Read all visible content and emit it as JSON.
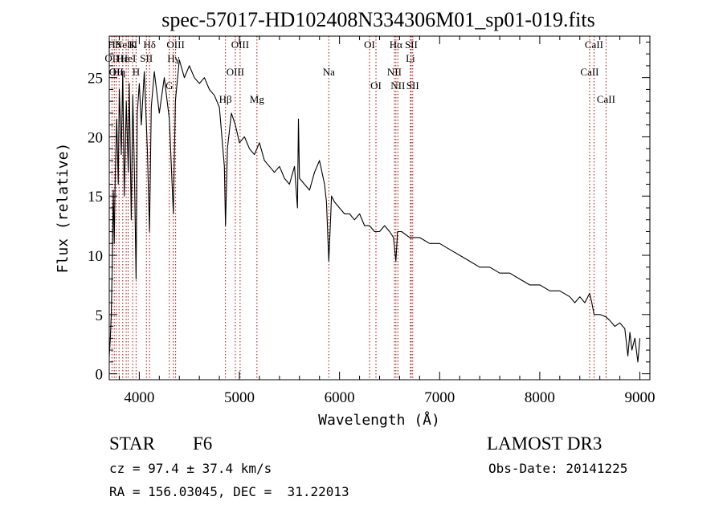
{
  "chart_data": {
    "type": "line",
    "title": "spec-57017-HD102408N334306M01_sp01-019.fits",
    "xlabel": "Wavelength (Å)",
    "ylabel": "Flux (relative)",
    "xlim": [
      3700,
      9100
    ],
    "ylim": [
      -0.5,
      28.5
    ],
    "xticks": [
      4000,
      5000,
      6000,
      7000,
      8000,
      9000
    ],
    "yticks": [
      0,
      5,
      10,
      15,
      20,
      25
    ],
    "series": [
      {
        "name": "flux",
        "x": [
          3700,
          3710,
          3720,
          3730,
          3740,
          3750,
          3760,
          3775,
          3790,
          3800,
          3820,
          3835,
          3850,
          3870,
          3890,
          3900,
          3920,
          3935,
          3950,
          3968,
          3980,
          4000,
          4020,
          4050,
          4080,
          4102,
          4120,
          4150,
          4200,
          4250,
          4300,
          4340,
          4360,
          4400,
          4450,
          4500,
          4550,
          4600,
          4650,
          4700,
          4750,
          4800,
          4850,
          4861,
          4880,
          4920,
          4960,
          5000,
          5050,
          5100,
          5150,
          5200,
          5250,
          5300,
          5350,
          5400,
          5450,
          5500,
          5550,
          5580,
          5590,
          5600,
          5650,
          5700,
          5750,
          5800,
          5850,
          5870,
          5893,
          5920,
          5950,
          6000,
          6050,
          6100,
          6150,
          6200,
          6250,
          6300,
          6350,
          6400,
          6450,
          6500,
          6540,
          6563,
          6580,
          6620,
          6700,
          6800,
          6900,
          7000,
          7100,
          7200,
          7300,
          7400,
          7500,
          7600,
          7700,
          7800,
          7900,
          8000,
          8100,
          8200,
          8300,
          8350,
          8400,
          8450,
          8498,
          8520,
          8542,
          8600,
          8662,
          8700,
          8750,
          8800,
          8850,
          8880,
          8900,
          8920,
          8950,
          8980,
          9000
        ],
        "y": [
          1.5,
          2.8,
          5.0,
          9.0,
          15.5,
          11.0,
          17.0,
          21.5,
          16.0,
          24.0,
          18.5,
          25.5,
          15.0,
          23.0,
          17.0,
          24.5,
          13.0,
          23.5,
          17.5,
          8.0,
          22.0,
          24.5,
          21.0,
          25.5,
          19.0,
          12.0,
          22.5,
          25.5,
          22.0,
          25.0,
          21.5,
          13.5,
          23.0,
          26.5,
          25.0,
          26.0,
          25.0,
          24.5,
          25.0,
          24.0,
          23.5,
          22.5,
          17.5,
          12.5,
          19.0,
          22.0,
          21.0,
          19.5,
          20.0,
          19.0,
          18.5,
          19.5,
          18.0,
          17.5,
          17.0,
          17.5,
          16.5,
          16.0,
          17.5,
          14.0,
          21.5,
          16.5,
          16.0,
          15.5,
          17.0,
          18.0,
          16.0,
          14.5,
          9.5,
          15.0,
          14.5,
          14.0,
          13.5,
          13.5,
          13.0,
          13.5,
          12.5,
          12.5,
          12.0,
          12.0,
          12.5,
          12.0,
          11.5,
          9.5,
          12.0,
          12.0,
          11.5,
          11.5,
          11.0,
          11.0,
          10.5,
          10.0,
          9.5,
          9.0,
          9.0,
          8.5,
          8.5,
          8.0,
          7.5,
          7.5,
          7.0,
          7.0,
          6.5,
          6.0,
          6.5,
          6.0,
          6.8,
          6.0,
          5.0,
          5.0,
          4.8,
          4.5,
          4.0,
          4.3,
          3.8,
          1.5,
          3.5,
          2.0,
          3.0,
          1.0,
          3.0
        ]
      }
    ],
    "lines": [
      {
        "wl": 3727,
        "labels": [
          "OII"
        ],
        "row": 2
      },
      {
        "wl": 3750,
        "labels": [
          "Hθ"
        ],
        "row": 1
      },
      {
        "wl": 3770,
        "labels": [
          "OII"
        ],
        "row": 3
      },
      {
        "wl": 3798,
        "labels": [
          "Hη"
        ],
        "row": 3
      },
      {
        "wl": 3835,
        "labels": [
          "Hε"
        ],
        "row": 2
      },
      {
        "wl": 3869,
        "labels": [
          "NeIII"
        ],
        "row": 1
      },
      {
        "wl": 3889,
        "labels": [
          "HeI"
        ],
        "row": 2
      },
      {
        "wl": 3934,
        "labels": [
          "K"
        ],
        "row": 1
      },
      {
        "wl": 3968,
        "labels": [
          "H"
        ],
        "row": 3
      },
      {
        "wl": 4071,
        "labels": [
          "SII"
        ],
        "row": 2
      },
      {
        "wl": 4102,
        "labels": [
          "Hδ"
        ],
        "row": 1
      },
      {
        "wl": 4300,
        "labels": [
          "G"
        ],
        "row": 4
      },
      {
        "wl": 4340,
        "labels": [
          "Hγ"
        ],
        "row": 2
      },
      {
        "wl": 4363,
        "labels": [
          "OIII"
        ],
        "row": 1
      },
      {
        "wl": 4861,
        "labels": [
          "Hβ"
        ],
        "row": 5
      },
      {
        "wl": 4959,
        "labels": [
          "OIII"
        ],
        "row": 3
      },
      {
        "wl": 5007,
        "labels": [
          "OIII"
        ],
        "row": 1
      },
      {
        "wl": 5175,
        "labels": [
          "Mg"
        ],
        "row": 5
      },
      {
        "wl": 5893,
        "labels": [
          "Na"
        ],
        "row": 3
      },
      {
        "wl": 6300,
        "labels": [
          "OI"
        ],
        "row": 1
      },
      {
        "wl": 6364,
        "labels": [
          "OI"
        ],
        "row": 4
      },
      {
        "wl": 6548,
        "labels": [
          "NII"
        ],
        "row": 3
      },
      {
        "wl": 6563,
        "labels": [
          "Hα"
        ],
        "row": 1
      },
      {
        "wl": 6583,
        "labels": [
          "NII"
        ],
        "row": 4
      },
      {
        "wl": 6708,
        "labels": [
          "Li"
        ],
        "row": 2
      },
      {
        "wl": 6716,
        "labels": [
          "SII"
        ],
        "row": 1
      },
      {
        "wl": 6731,
        "labels": [
          "SII"
        ],
        "row": 4
      },
      {
        "wl": 8498,
        "labels": [
          "CaII"
        ],
        "row": 3
      },
      {
        "wl": 8542,
        "labels": [
          "CaII"
        ],
        "row": 1
      },
      {
        "wl": 8662,
        "labels": [
          "CaII"
        ],
        "row": 5
      }
    ],
    "line_color": "#b40000"
  },
  "info": {
    "class_label": "STAR",
    "subclass": "F6",
    "survey": "LAMOST DR3",
    "cz": "cz = 97.4 ± 37.4 km/s",
    "obs_date": "Obs-Date: 20141225",
    "coords": "RA = 156.03045, DEC =  31.22013"
  }
}
